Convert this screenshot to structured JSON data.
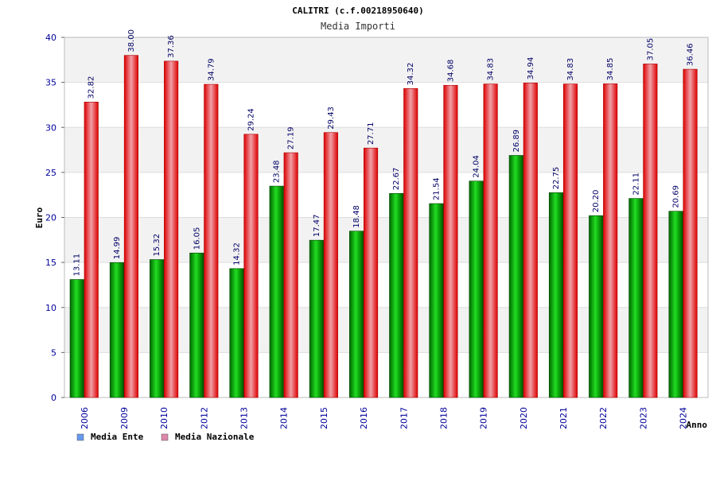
{
  "chart_data": {
    "type": "bar",
    "title": "CALITRI (c.f.00218950640)",
    "subtitle": "Media Importi",
    "xlabel": "Anno",
    "ylabel": "Euro",
    "ylim": [
      0,
      40
    ],
    "yticks": [
      "0",
      "5",
      "10",
      "15",
      "20",
      "25",
      "30",
      "35",
      "40"
    ],
    "categories": [
      "2006",
      "2009",
      "2010",
      "2012",
      "2013",
      "2014",
      "2015",
      "2016",
      "2017",
      "2018",
      "2019",
      "2020",
      "2021",
      "2022",
      "2023",
      "2024"
    ],
    "series": [
      {
        "name": "Media Ente",
        "color": "#00aa00",
        "values": [
          13.11,
          14.99,
          15.32,
          16.05,
          14.32,
          23.48,
          17.47,
          18.48,
          22.67,
          21.54,
          24.04,
          26.89,
          22.75,
          20.2,
          22.11,
          20.69
        ],
        "labels": [
          "13.11",
          "14.99",
          "15.32",
          "16.05",
          "14.32",
          "23.48",
          "17.47",
          "18.48",
          "22.67",
          "21.54",
          "24.04",
          "26.89",
          "22.75",
          "20.20",
          "22.11",
          "20.69"
        ]
      },
      {
        "name": "Media Nazionale",
        "color": "#ee1111",
        "values": [
          32.82,
          38.0,
          37.36,
          34.79,
          29.24,
          27.19,
          29.43,
          27.71,
          34.32,
          34.68,
          34.83,
          34.94,
          34.83,
          34.85,
          37.05,
          36.46
        ],
        "labels": [
          "32.82",
          "38.00",
          "37.36",
          "34.79",
          "29.24",
          "27.19",
          "29.43",
          "27.71",
          "34.32",
          "34.68",
          "34.83",
          "34.94",
          "34.83",
          "34.85",
          "37.05",
          "36.46"
        ]
      }
    ],
    "legend": {
      "position": "bottom-left",
      "items": [
        {
          "label": "Media Ente",
          "swatch": "#6699ee"
        },
        {
          "label": "Media Nazionale",
          "swatch": "#dd88aa"
        }
      ]
    },
    "grid": true
  }
}
